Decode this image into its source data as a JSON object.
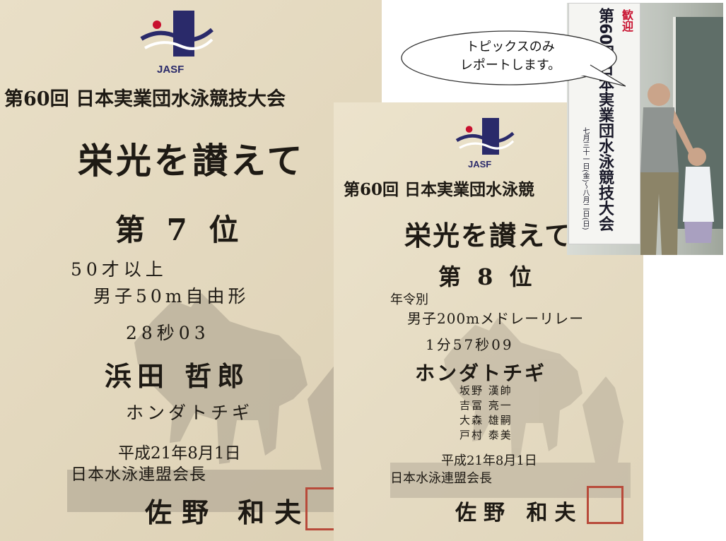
{
  "cert1": {
    "org": "JASF",
    "event": "第60回 日本実業団水泳競技大会",
    "heading": "栄光を讃えて",
    "rank": "第 7 位",
    "category": "50才以上",
    "race": "男子50m自由形",
    "time": "28秒03",
    "name": "浜田 哲郎",
    "team": "ホンダトチギ",
    "date": "平成21年8月1日",
    "issuer": "日本水泳連盟会長",
    "signer": "佐野 和夫"
  },
  "cert2": {
    "org": "JASF",
    "event": "第60回 日本実業団水泳競",
    "heading": "栄光を讃えて",
    "rank": "第 8 位",
    "category": "年令別",
    "race": "男子200mメドレーリレー",
    "time": "1分57秒09",
    "team": "ホンダトチギ",
    "members": [
      "坂野 漢帥",
      "吉冨 亮一",
      "大森 雄嗣",
      "戸村 泰美"
    ],
    "date": "平成21年8月1日",
    "issuer": "日本水泳連盟会長",
    "signer": "佐野 和夫"
  },
  "photo": {
    "banner_welcome": "歓迎",
    "banner_main": "第60回日本実業団水泳競技大会",
    "banner_dates": "七月三十一日(金)〜八月二日(日)"
  },
  "callout": {
    "line1": "トピックスのみ",
    "line2": "レポートします。"
  },
  "colors": {
    "paper": "#e6dcc3",
    "ink": "#1e1a14",
    "logo_blue": "#2a2a6a",
    "logo_red": "#c8102e",
    "seal_red": "#b84a3a"
  }
}
